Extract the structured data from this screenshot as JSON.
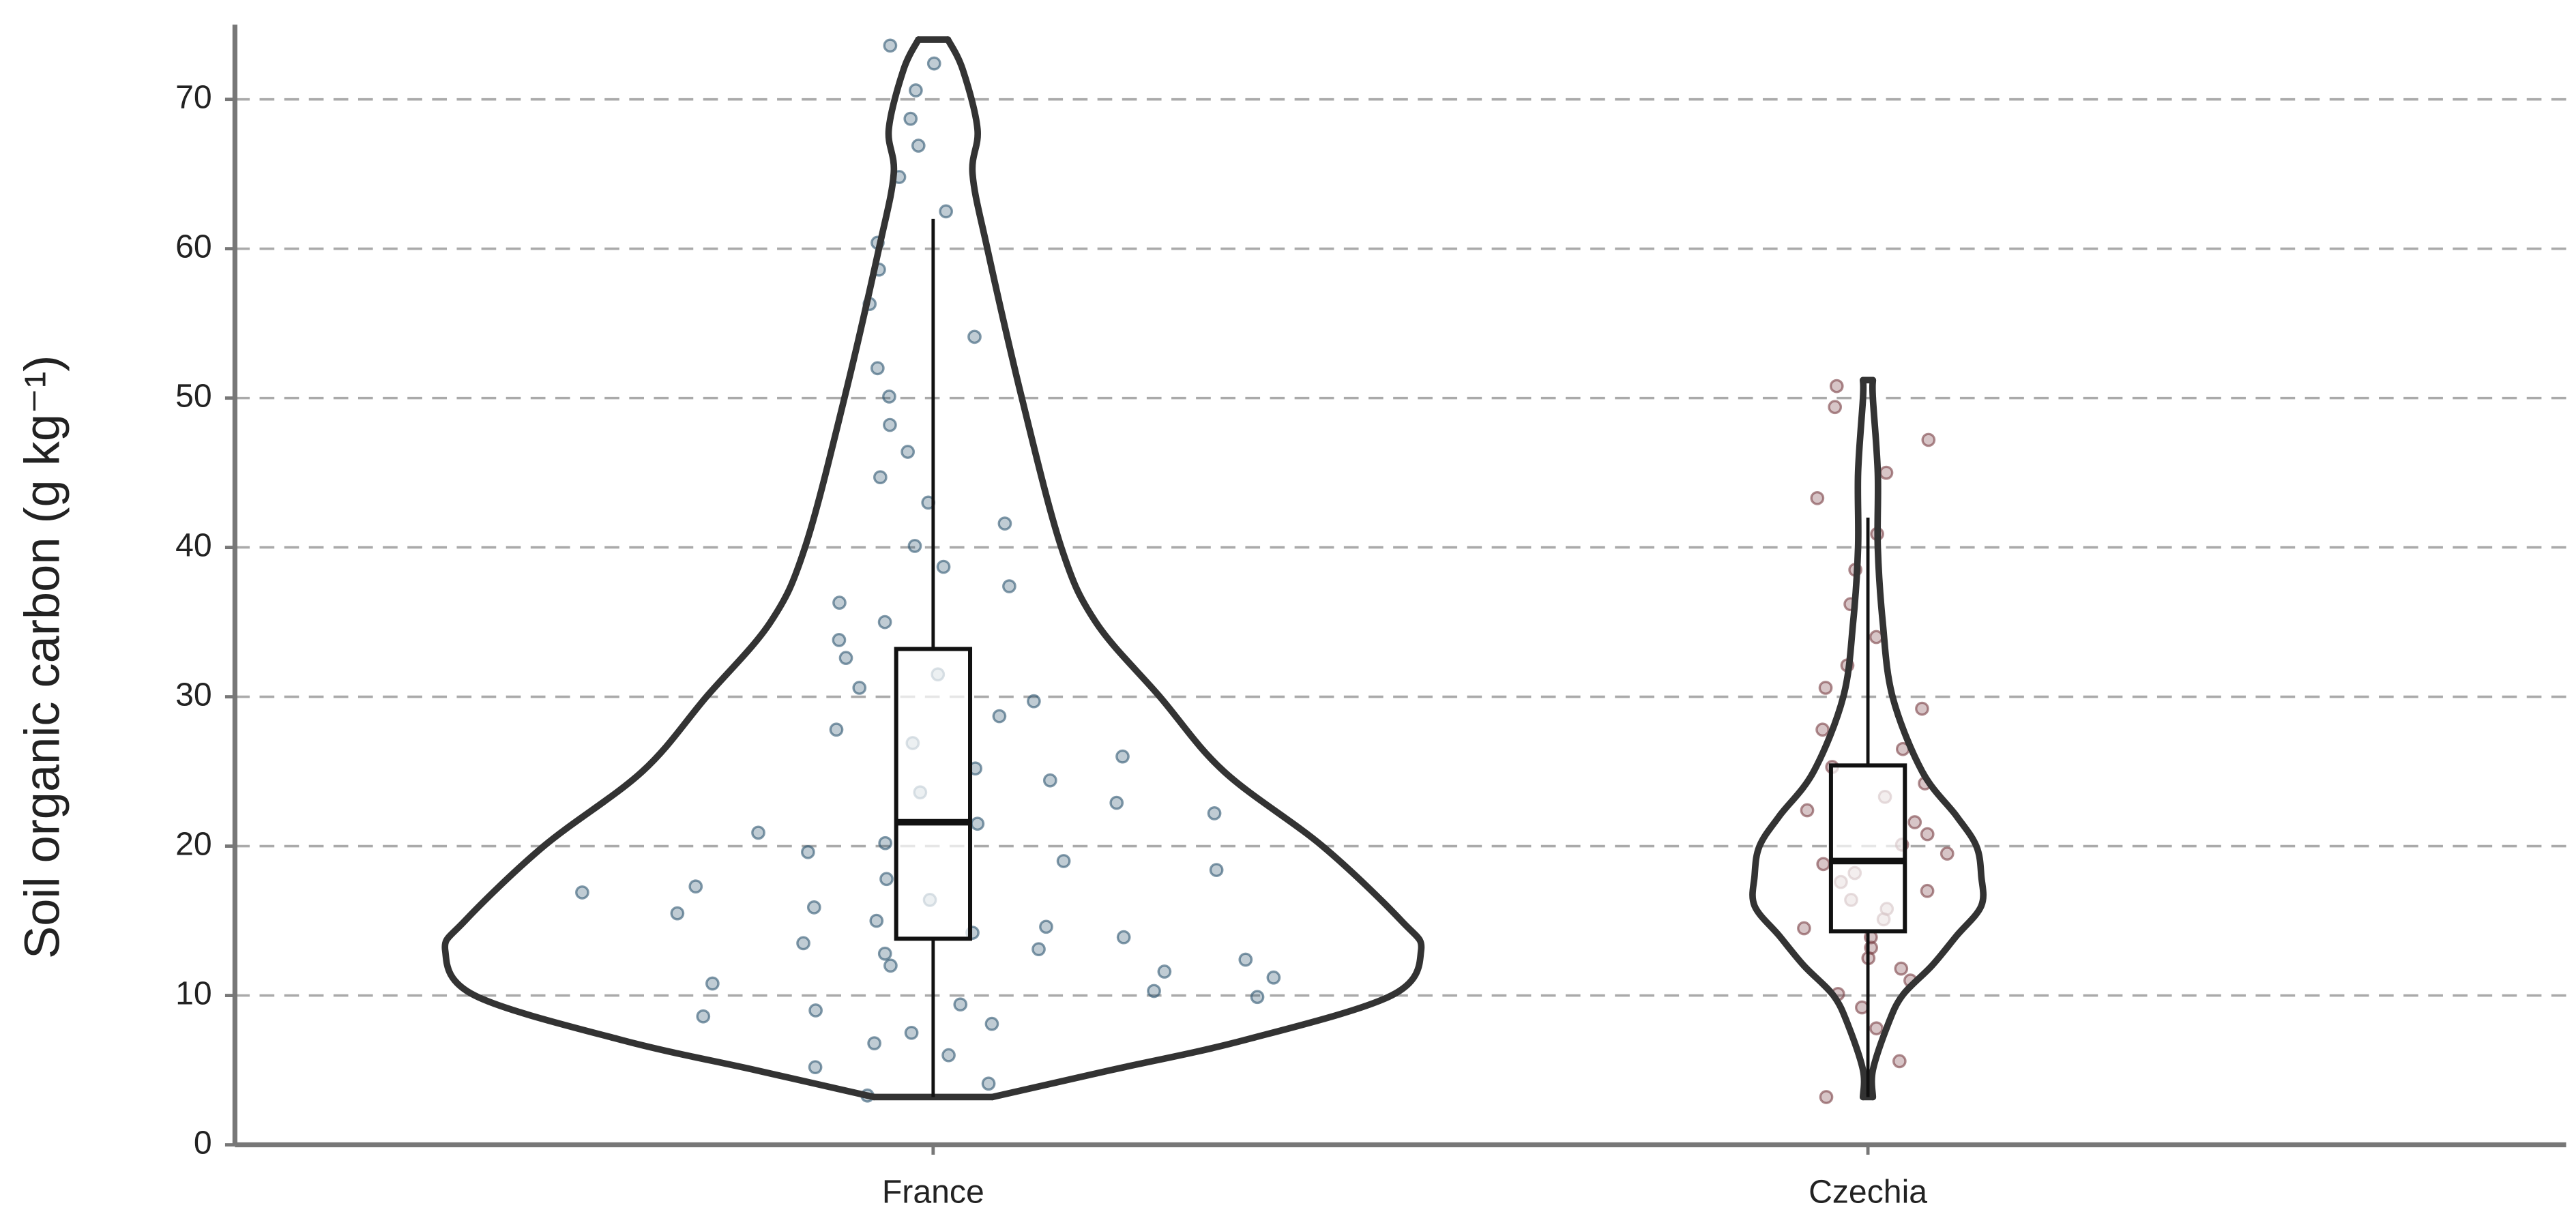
{
  "chart_data": {
    "type": "violin",
    "y_label": "Soil organic carbon (g kg⁻¹)",
    "categories": [
      "France",
      "Czechia"
    ],
    "ylim": [
      0,
      75
    ],
    "yticks": [
      0,
      10,
      20,
      30,
      40,
      50,
      60,
      70
    ],
    "grid": true,
    "groups": [
      {
        "color": "#2e5672",
        "points": [
          3.3,
          4.1,
          5.2,
          6.0,
          6.8,
          7.5,
          8.1,
          8.6,
          9.0,
          9.4,
          9.9,
          10.3,
          10.8,
          11.2,
          11.6,
          12.0,
          12.4,
          12.8,
          13.1,
          13.5,
          13.9,
          14.2,
          14.6,
          15.0,
          15.5,
          15.9,
          16.4,
          16.9,
          17.3,
          17.8,
          18.4,
          19.0,
          19.6,
          20.2,
          20.9,
          21.5,
          22.2,
          22.9,
          23.6,
          24.4,
          25.2,
          26.0,
          26.9,
          27.8,
          28.7,
          29.7,
          30.6,
          31.5,
          32.6,
          33.8,
          35.0,
          36.3,
          37.4,
          38.7,
          40.1,
          41.6,
          43.0,
          44.7,
          46.4,
          48.2,
          50.1,
          52.0,
          54.1,
          56.3,
          58.6,
          60.4,
          62.5,
          64.8,
          66.9,
          68.7,
          70.6,
          72.4,
          73.6
        ],
        "box": {
          "whisker_low": 3.2,
          "q1": 13.8,
          "median": 21.6,
          "q3": 33.2,
          "whisker_high": 62
        },
        "density": {
          "y": [
            3.2,
            5,
            7,
            10,
            13,
            15,
            20,
            25,
            30,
            35,
            40,
            50,
            60,
            65,
            68,
            72,
            74
          ],
          "width": [
            0.12,
            0.36,
            0.63,
            0.93,
            0.99,
            0.95,
            0.79,
            0.59,
            0.46,
            0.33,
            0.26,
            0.18,
            0.11,
            0.08,
            0.09,
            0.06,
            0.03
          ]
        }
      },
      {
        "color": "#7a3f44",
        "points": [
          3.2,
          5.6,
          7.8,
          9.2,
          10.1,
          11.0,
          11.8,
          12.5,
          13.2,
          13.9,
          14.5,
          15.1,
          15.8,
          16.4,
          17.0,
          17.6,
          18.2,
          18.8,
          19.5,
          20.1,
          20.8,
          21.6,
          22.4,
          23.3,
          24.2,
          25.3,
          26.5,
          27.8,
          29.2,
          30.6,
          32.1,
          34.0,
          36.2,
          38.5,
          40.9,
          43.3,
          45.0,
          47.2,
          49.4,
          50.8
        ],
        "box": {
          "whisker_low": 3.2,
          "q1": 14.3,
          "median": 19,
          "q3": 25.4,
          "whisker_high": 42
        },
        "density": {
          "y": [
            3.2,
            5,
            8,
            10,
            12,
            14,
            16,
            18,
            20,
            22,
            25,
            30,
            35,
            40,
            45,
            50,
            51.2
          ],
          "width": [
            0.01,
            0.01,
            0.04,
            0.07,
            0.13,
            0.18,
            0.23,
            0.23,
            0.22,
            0.18,
            0.11,
            0.05,
            0.03,
            0.02,
            0.02,
            0.01,
            0.01
          ]
        }
      }
    ]
  }
}
